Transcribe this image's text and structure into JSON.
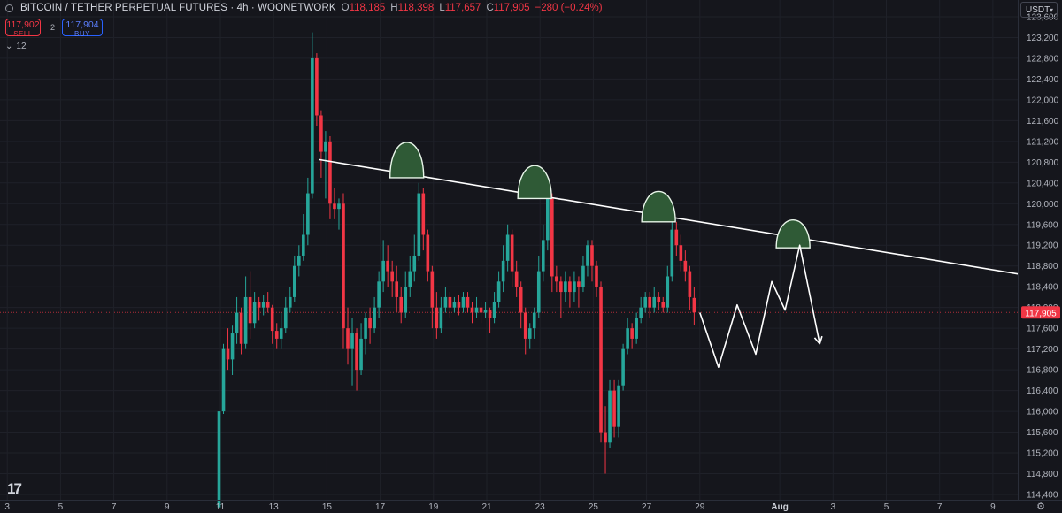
{
  "header": {
    "symbol_title": "BITCOIN / TETHER PERPETUAL FUTURES · 4h · WOONETWORK",
    "open_key": "O",
    "open": "118,185",
    "high_key": "H",
    "high": "118,398",
    "low_key": "L",
    "low": "117,657",
    "close_key": "C",
    "close": "117,905",
    "change": "−280 (−0.24%)"
  },
  "trade": {
    "sell_price": "117,902",
    "sell_label": "SELL",
    "spread": "2",
    "buy_price": "117,904",
    "buy_label": "BUY"
  },
  "indicators_label": "12",
  "currency": "USDT",
  "colors": {
    "background": "#15161c",
    "up": "#26a69a",
    "down": "#f23645",
    "hump_fill": "#2f5a36",
    "price_tag": "#f23645",
    "grid": "#1f2129",
    "text": "#b2b5be"
  },
  "chart_data": {
    "type": "candlestick",
    "timeframe": "4h",
    "ylim": [
      114000,
      123700
    ],
    "y_ticks": [
      114400,
      114800,
      115200,
      115600,
      116000,
      116400,
      116800,
      117200,
      117600,
      118000,
      118400,
      118800,
      119200,
      119600,
      120000,
      120400,
      120800,
      121200,
      121600,
      122000,
      122400,
      122800,
      123200,
      123600
    ],
    "y_tick_labels": [
      "114,400",
      "114,800",
      "115,200",
      "115,600",
      "116,000",
      "116,400",
      "116,800",
      "117,200",
      "117,600",
      "118,000",
      "118,400",
      "118,800",
      "119,200",
      "119,600",
      "120,000",
      "120,400",
      "120,800",
      "121,200",
      "121,600",
      "122,000",
      "122,400",
      "122,800",
      "123,200",
      "123,600"
    ],
    "x_ticks": [
      {
        "label": "3",
        "day": 3
      },
      {
        "label": "5",
        "day": 5
      },
      {
        "label": "7",
        "day": 7
      },
      {
        "label": "9",
        "day": 9
      },
      {
        "label": "11",
        "day": 11
      },
      {
        "label": "13",
        "day": 13
      },
      {
        "label": "15",
        "day": 15
      },
      {
        "label": "17",
        "day": 17
      },
      {
        "label": "19",
        "day": 19
      },
      {
        "label": "21",
        "day": 21
      },
      {
        "label": "23",
        "day": 23
      },
      {
        "label": "25",
        "day": 25
      },
      {
        "label": "27",
        "day": 27
      },
      {
        "label": "29",
        "day": 29
      },
      {
        "label": "Aug",
        "day": 32,
        "bold": true
      },
      {
        "label": "3",
        "day": 34
      },
      {
        "label": "5",
        "day": 36
      },
      {
        "label": "7",
        "day": 38
      },
      {
        "label": "9",
        "day": 40
      }
    ],
    "x_range_days": [
      2.9,
      42
    ],
    "candle_start_day": 10.95,
    "candle_step_days": 0.1667,
    "last_price": 117905,
    "last_price_label": "117,905",
    "candles": [
      [
        114150,
        116000,
        114000,
        116100
      ],
      [
        116000,
        117200,
        115950,
        117300
      ],
      [
        117200,
        117000,
        116800,
        117600
      ],
      [
        117000,
        117500,
        116700,
        117650
      ],
      [
        117500,
        117900,
        117300,
        118200
      ],
      [
        117900,
        117300,
        117100,
        118000
      ],
      [
        117300,
        118200,
        117200,
        118600
      ],
      [
        118200,
        117700,
        117400,
        118700
      ],
      [
        117700,
        118100,
        117600,
        118300
      ],
      [
        118100,
        118000,
        117750,
        118200
      ],
      [
        118000,
        118100,
        117850,
        118250
      ],
      [
        118100,
        118000,
        117900,
        118300
      ],
      [
        118000,
        117550,
        117300,
        118050
      ],
      [
        117550,
        117400,
        117200,
        117700
      ],
      [
        117400,
        117600,
        117200,
        117900
      ],
      [
        117600,
        118000,
        117500,
        118200
      ],
      [
        118000,
        118200,
        117900,
        118400
      ],
      [
        118200,
        118800,
        118100,
        119000
      ],
      [
        118800,
        119000,
        118600,
        119200
      ],
      [
        119000,
        119400,
        118900,
        119800
      ],
      [
        119400,
        120200,
        119200,
        120500
      ],
      [
        120200,
        122800,
        120100,
        123300
      ],
      [
        122800,
        121700,
        121500,
        122900
      ],
      [
        121700,
        121000,
        120500,
        121800
      ],
      [
        121000,
        121200,
        120100,
        121400
      ],
      [
        121200,
        120000,
        119700,
        121300
      ],
      [
        120000,
        119900,
        119700,
        120300
      ],
      [
        119900,
        120000,
        119500,
        120100
      ],
      [
        120000,
        117600,
        117200,
        120200
      ],
      [
        117600,
        117200,
        116900,
        118000
      ],
      [
        117200,
        117500,
        116500,
        117800
      ],
      [
        117500,
        116800,
        116400,
        117600
      ],
      [
        116800,
        117400,
        116700,
        117700
      ],
      [
        117400,
        117800,
        117100,
        117900
      ],
      [
        117800,
        117600,
        117300,
        118000
      ],
      [
        117600,
        118000,
        117500,
        118200
      ],
      [
        118000,
        118500,
        117800,
        118700
      ],
      [
        118500,
        118900,
        118300,
        119300
      ],
      [
        118900,
        118700,
        118400,
        119200
      ],
      [
        118700,
        118500,
        118200,
        118900
      ],
      [
        118500,
        118200,
        117900,
        118800
      ],
      [
        118200,
        117900,
        117700,
        118400
      ],
      [
        117900,
        118400,
        117800,
        118700
      ],
      [
        118400,
        118700,
        118200,
        119000
      ],
      [
        118700,
        119000,
        118500,
        119400
      ],
      [
        119000,
        120200,
        118900,
        120400
      ],
      [
        120200,
        119400,
        119100,
        120300
      ],
      [
        119400,
        118700,
        118500,
        119500
      ],
      [
        118700,
        118000,
        117600,
        118800
      ],
      [
        118000,
        117600,
        117400,
        118300
      ],
      [
        117600,
        118000,
        117500,
        118200
      ],
      [
        118000,
        118200,
        117900,
        118400
      ],
      [
        118200,
        118000,
        117800,
        118300
      ],
      [
        118000,
        118100,
        117900,
        118200
      ],
      [
        118100,
        118000,
        117850,
        118250
      ],
      [
        118000,
        118200,
        117900,
        118300
      ],
      [
        118200,
        118000,
        117900,
        118300
      ],
      [
        118000,
        117900,
        117700,
        118100
      ],
      [
        117900,
        118000,
        117800,
        118200
      ],
      [
        118000,
        117900,
        117700,
        118100
      ],
      [
        117900,
        117950,
        117800,
        118100
      ],
      [
        117950,
        117800,
        117500,
        118000
      ],
      [
        117800,
        118100,
        117700,
        118300
      ],
      [
        118100,
        118500,
        118000,
        118700
      ],
      [
        118500,
        118900,
        118300,
        119200
      ],
      [
        118900,
        119400,
        118700,
        119600
      ],
      [
        119400,
        118700,
        118400,
        119500
      ],
      [
        118700,
        118400,
        118200,
        118900
      ],
      [
        118400,
        117900,
        117600,
        118500
      ],
      [
        117900,
        117400,
        117100,
        118000
      ],
      [
        117400,
        117600,
        117200,
        117700
      ],
      [
        117600,
        117900,
        117400,
        118000
      ],
      [
        117900,
        118700,
        117800,
        119000
      ],
      [
        118700,
        119300,
        118500,
        119600
      ],
      [
        119300,
        120100,
        119100,
        120300
      ],
      [
        120100,
        118600,
        118300,
        120200
      ],
      [
        118600,
        118500,
        118300,
        118800
      ],
      [
        118500,
        118300,
        117800,
        118600
      ],
      [
        118300,
        118500,
        118100,
        118700
      ],
      [
        118500,
        118300,
        118000,
        118600
      ],
      [
        118300,
        118500,
        118100,
        118700
      ],
      [
        118500,
        118400,
        118000,
        118600
      ],
      [
        118400,
        118800,
        118300,
        119000
      ],
      [
        118800,
        119200,
        118600,
        119300
      ],
      [
        119200,
        118800,
        118500,
        119300
      ],
      [
        118800,
        118400,
        118200,
        118900
      ],
      [
        118400,
        115600,
        115400,
        118500
      ],
      [
        115600,
        115400,
        114800,
        116100
      ],
      [
        115400,
        116400,
        115300,
        116600
      ],
      [
        116400,
        115700,
        115500,
        116600
      ],
      [
        115700,
        116500,
        115500,
        116600
      ],
      [
        116500,
        117200,
        116400,
        117300
      ],
      [
        117200,
        117600,
        117100,
        117800
      ],
      [
        117600,
        117400,
        117200,
        117700
      ],
      [
        117400,
        117800,
        117300,
        117900
      ],
      [
        117800,
        118000,
        117700,
        118200
      ],
      [
        118000,
        118200,
        117900,
        118300
      ],
      [
        118200,
        118000,
        117800,
        118300
      ],
      [
        118000,
        118200,
        117900,
        118400
      ],
      [
        118200,
        118100,
        117950,
        118300
      ],
      [
        118100,
        118000,
        117900,
        118200
      ],
      [
        118000,
        118600,
        117900,
        118800
      ],
      [
        118600,
        119500,
        118500,
        119700
      ],
      [
        119500,
        119200,
        119000,
        119650
      ],
      [
        119200,
        118900,
        118700,
        119400
      ],
      [
        118900,
        118700,
        118500,
        119100
      ],
      [
        118700,
        118200,
        117950,
        118800
      ],
      [
        118185,
        117905,
        117657,
        118398
      ]
    ],
    "trendline": {
      "from": {
        "day": 14.7,
        "price": 120850
      },
      "to": {
        "day": 41.5,
        "price": 118600
      }
    },
    "humps": [
      {
        "center_day": 18.0,
        "base_price": 120500,
        "height_price": 700
      },
      {
        "center_day": 22.8,
        "base_price": 120100,
        "height_price": 650
      },
      {
        "center_day": 27.45,
        "base_price": 119650,
        "height_price": 600
      },
      {
        "center_day": 32.5,
        "base_price": 119150,
        "height_price": 550
      }
    ],
    "projection": [
      {
        "day": 29.0,
        "price": 117900
      },
      {
        "day": 29.7,
        "price": 116850
      },
      {
        "day": 30.4,
        "price": 118050
      },
      {
        "day": 31.1,
        "price": 117100
      },
      {
        "day": 31.7,
        "price": 118500
      },
      {
        "day": 32.2,
        "price": 117950
      },
      {
        "day": 32.75,
        "price": 119200
      },
      {
        "day": 33.5,
        "price": 117300
      }
    ]
  }
}
